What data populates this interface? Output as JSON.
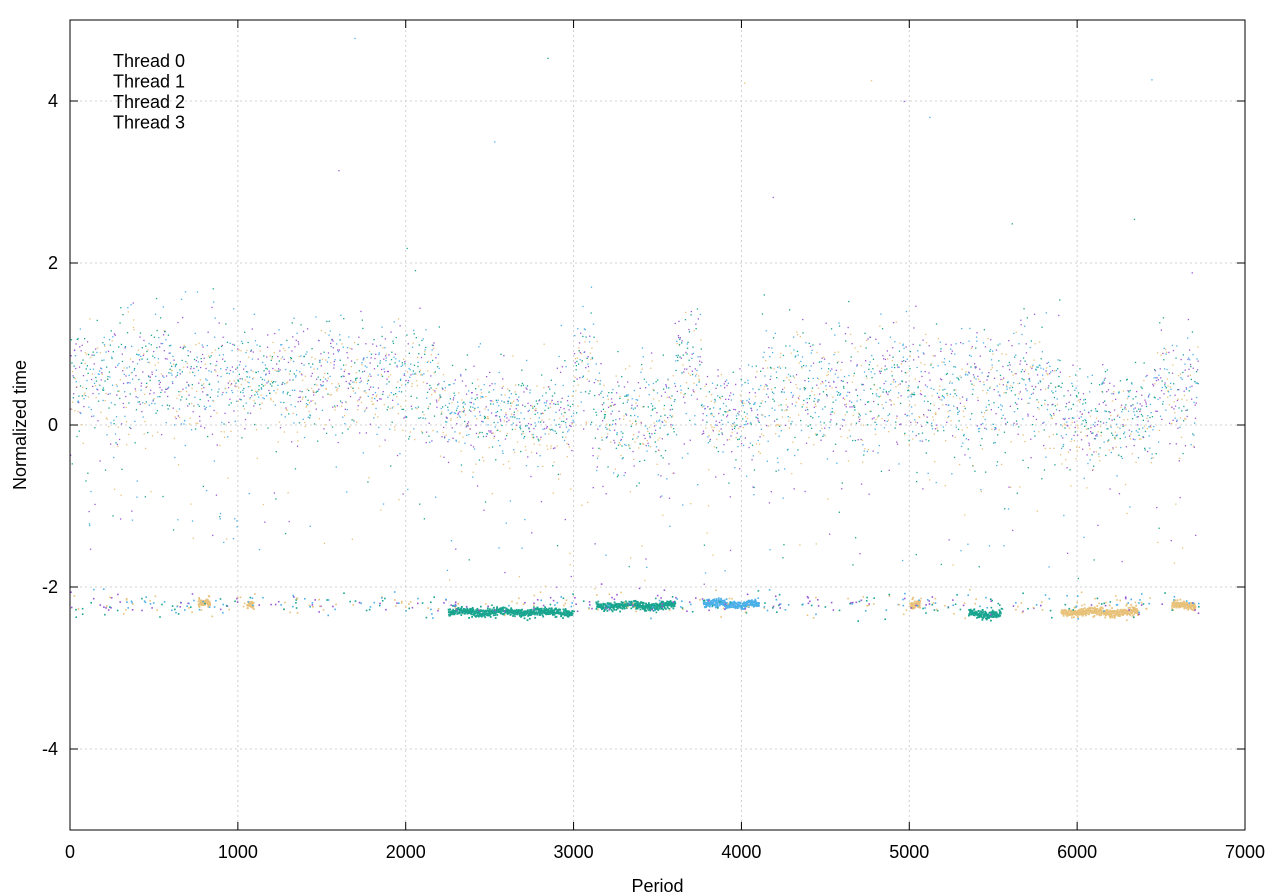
{
  "chart_data": {
    "type": "scatter",
    "title": "",
    "xlabel": "Period",
    "ylabel": "Normalized time",
    "xlim": [
      0,
      7000
    ],
    "ylim": [
      -5,
      5
    ],
    "x_ticks": [
      0,
      1000,
      2000,
      3000,
      4000,
      5000,
      6000,
      7000
    ],
    "y_ticks": [
      -4,
      -2,
      0,
      2,
      4
    ],
    "grid": true,
    "legend_position": "top-left",
    "series": [
      {
        "name": "Thread 0",
        "color": "#9b59d6"
      },
      {
        "name": "Thread 1",
        "color": "#1aa58f"
      },
      {
        "name": "Thread 2",
        "color": "#4db0e8"
      },
      {
        "name": "Thread 3",
        "color": "#e8c27a"
      }
    ],
    "regimes": [
      {
        "x_range": [
          0,
          2200
        ],
        "main_level": 0.6,
        "spread": 0.35
      },
      {
        "x_range": [
          2200,
          3000
        ],
        "main_level": 0.15,
        "spread": 0.3
      },
      {
        "x_range": [
          3000,
          3120
        ],
        "main_level": 0.8,
        "spread": 0.35
      },
      {
        "x_range": [
          3120,
          3600
        ],
        "main_level": 0.1,
        "spread": 0.35
      },
      {
        "x_range": [
          3600,
          3760
        ],
        "main_level": 0.8,
        "spread": 0.3
      },
      {
        "x_range": [
          3760,
          4120
        ],
        "main_level": 0.15,
        "spread": 0.3
      },
      {
        "x_range": [
          4120,
          5900
        ],
        "main_level": 0.45,
        "spread": 0.4
      },
      {
        "x_range": [
          5900,
          6450
        ],
        "main_level": 0.1,
        "spread": 0.3
      },
      {
        "x_range": [
          6450,
          6720
        ],
        "main_level": 0.5,
        "spread": 0.35
      }
    ],
    "low_clusters": [
      {
        "x_range": [
          2250,
          2990
        ],
        "y": -2.3,
        "series": "Thread 1"
      },
      {
        "x_range": [
          3130,
          3600
        ],
        "y": -2.22,
        "series": "Thread 1"
      },
      {
        "x_range": [
          3770,
          4100
        ],
        "y": -2.2,
        "series": "Thread 2"
      },
      {
        "x_range": [
          5350,
          5540
        ],
        "y": -2.32,
        "series": "Thread 1"
      },
      {
        "x_range": [
          5900,
          6360
        ],
        "y": -2.3,
        "series": "Thread 3"
      },
      {
        "x_range": [
          6560,
          6700
        ],
        "y": -2.22,
        "series": "Thread 3"
      },
      {
        "x_range": [
          760,
          830
        ],
        "y": -2.2,
        "series": "Thread 3"
      },
      {
        "x_range": [
          1050,
          1090
        ],
        "y": -2.22,
        "series": "Thread 3"
      },
      {
        "x_range": [
          5000,
          5060
        ],
        "y": -2.2,
        "series": "Thread 3"
      }
    ],
    "x_end": 6720
  }
}
